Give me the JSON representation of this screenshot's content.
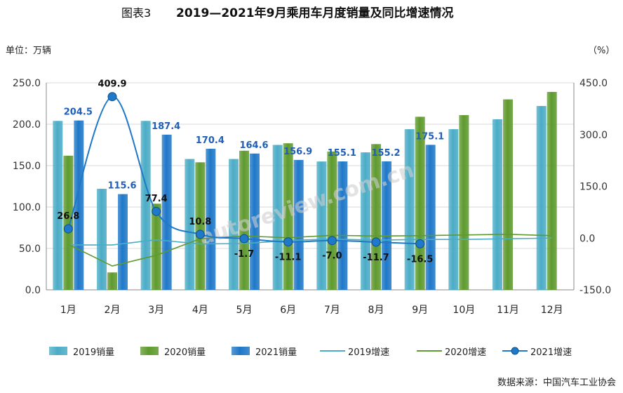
{
  "chart_data": {
    "type": "bar",
    "title_prefix": "图表3",
    "title": "2019—2021年9月乘用车月度销量及同比增速情况",
    "left_unit": "单位：万辆",
    "right_unit": "（%）",
    "source": "数据来源：中国汽车工业协会",
    "categories": [
      "1月",
      "2月",
      "3月",
      "4月",
      "5月",
      "6月",
      "7月",
      "8月",
      "9月",
      "10月",
      "11月",
      "12月"
    ],
    "y_left": {
      "min": 0,
      "max": 250,
      "ticks": [
        "0.0",
        "50.0",
        "100.0",
        "150.0",
        "200.0",
        "250.0"
      ]
    },
    "y_right": {
      "min": -150,
      "max": 450,
      "ticks": [
        "-150.0",
        "0.0",
        "150.0",
        "300.0",
        "450.0"
      ]
    },
    "bar_series": [
      {
        "name": "2019销量",
        "color": "#4BACC6",
        "values": [
          204,
          122,
          204,
          158,
          158,
          175,
          155,
          166,
          194,
          194,
          206,
          222
        ]
      },
      {
        "name": "2020销量",
        "color": "#5E9A2E",
        "values": [
          162,
          21,
          104,
          154,
          168,
          177,
          167,
          176,
          209,
          211,
          230,
          239
        ]
      },
      {
        "name": "2021销量",
        "color": "#1F78C8",
        "values": [
          204.5,
          115.6,
          187.4,
          170.4,
          164.6,
          156.9,
          155.1,
          155.2,
          175.1,
          null,
          null,
          null
        ]
      }
    ],
    "line_series": [
      {
        "name": "2019增速",
        "color": "#4BACC6",
        "values": [
          -20,
          -20,
          -5,
          -17,
          -16,
          -7,
          -3,
          -6,
          -4,
          -4,
          -2,
          0
        ]
      },
      {
        "name": "2020增速",
        "color": "#5E9A2E",
        "values": [
          -18,
          -81,
          -50,
          -2,
          6,
          1,
          8,
          6,
          7,
          9,
          11,
          7
        ]
      },
      {
        "name": "2021增速",
        "color": "#1F78C8",
        "marker": true,
        "values": [
          26.8,
          409.9,
          77.4,
          10.8,
          -1.7,
          -11.1,
          -7.0,
          -11.7,
          -16.5,
          null,
          null,
          null
        ]
      }
    ],
    "bar_labels": [
      "204.5",
      "115.6",
      "187.4",
      "170.4",
      "164.6",
      "156.9",
      "155.1",
      "155.2",
      "175.1"
    ],
    "growth_labels": [
      "26.8",
      "409.9",
      "77.4",
      "10.8",
      "-1.7",
      "-11.1",
      "-7.0",
      "-11.7",
      "-16.5"
    ],
    "watermark": "autoreview.com.cn"
  }
}
